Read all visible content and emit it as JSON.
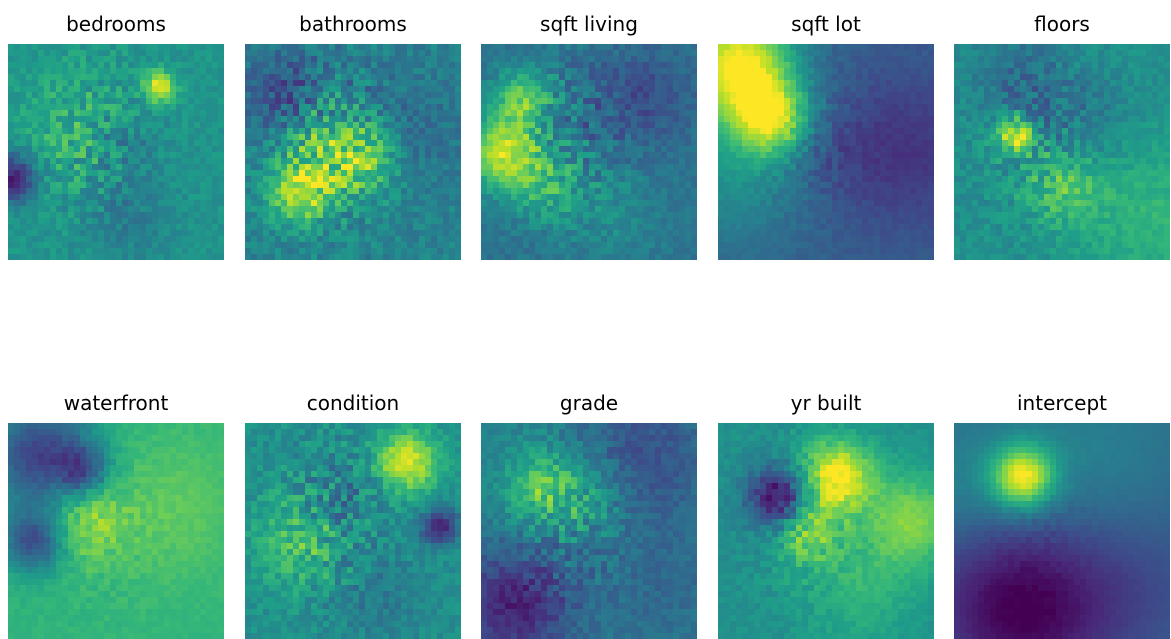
{
  "figure": {
    "colormap": "viridis",
    "colormap_stops": [
      "#440154",
      "#482878",
      "#3e4989",
      "#31688e",
      "#26828e",
      "#1f9e89",
      "#35b779",
      "#6ece58",
      "#b5de2b",
      "#fde725"
    ],
    "background": "#ffffff"
  },
  "chart_data": [
    {
      "type": "heatmap",
      "title": "bedrooms",
      "base": 0.52,
      "noise": 0.18,
      "blobs": [
        [
          0.7,
          0.2,
          0.05,
          0.45
        ],
        [
          0.02,
          0.62,
          0.08,
          -0.45
        ],
        [
          0.3,
          0.4,
          0.2,
          0.12
        ],
        [
          0.55,
          0.45,
          0.12,
          -0.1
        ],
        [
          0.55,
          0.8,
          0.15,
          -0.1
        ]
      ]
    },
    {
      "type": "heatmap",
      "title": "bathrooms",
      "base": 0.45,
      "noise": 0.28,
      "blobs": [
        [
          0.25,
          0.7,
          0.1,
          0.4
        ],
        [
          0.35,
          0.45,
          0.15,
          0.3
        ],
        [
          0.55,
          0.55,
          0.12,
          0.3
        ],
        [
          0.2,
          0.25,
          0.15,
          -0.25
        ],
        [
          0.75,
          0.4,
          0.2,
          -0.1
        ]
      ]
    },
    {
      "type": "heatmap",
      "title": "sqft living",
      "base": 0.38,
      "noise": 0.2,
      "blobs": [
        [
          0.1,
          0.5,
          0.12,
          0.5
        ],
        [
          0.2,
          0.25,
          0.1,
          0.35
        ],
        [
          0.3,
          0.65,
          0.12,
          0.25
        ],
        [
          0.75,
          0.25,
          0.15,
          -0.15
        ],
        [
          0.6,
          0.8,
          0.18,
          0.1
        ]
      ]
    },
    {
      "type": "heatmap",
      "title": "sqft lot",
      "base": 0.3,
      "noise": 0.08,
      "blobs": [
        [
          0.1,
          0.1,
          0.18,
          0.7
        ],
        [
          0.25,
          0.35,
          0.12,
          0.5
        ],
        [
          0.05,
          0.6,
          0.25,
          0.2
        ],
        [
          0.85,
          0.5,
          0.25,
          -0.15
        ],
        [
          0.5,
          0.5,
          0.12,
          -0.05
        ]
      ]
    },
    {
      "type": "heatmap",
      "title": "floors",
      "base": 0.5,
      "noise": 0.18,
      "blobs": [
        [
          0.28,
          0.42,
          0.06,
          0.45
        ],
        [
          0.3,
          0.15,
          0.15,
          -0.15
        ],
        [
          0.6,
          0.35,
          0.15,
          -0.1
        ],
        [
          0.5,
          0.65,
          0.12,
          0.2
        ],
        [
          0.9,
          0.8,
          0.25,
          0.15
        ]
      ]
    },
    {
      "type": "heatmap",
      "title": "waterfront",
      "base": 0.65,
      "noise": 0.08,
      "blobs": [
        [
          0.15,
          0.15,
          0.18,
          -0.45
        ],
        [
          0.12,
          0.55,
          0.1,
          -0.4
        ],
        [
          0.35,
          0.22,
          0.08,
          -0.3
        ],
        [
          0.35,
          0.45,
          0.12,
          0.2
        ],
        [
          0.75,
          0.4,
          0.25,
          0.1
        ]
      ]
    },
    {
      "type": "heatmap",
      "title": "condition",
      "base": 0.5,
      "noise": 0.22,
      "blobs": [
        [
          0.75,
          0.18,
          0.1,
          0.45
        ],
        [
          0.9,
          0.48,
          0.06,
          -0.4
        ],
        [
          0.25,
          0.55,
          0.15,
          0.2
        ],
        [
          0.45,
          0.35,
          0.12,
          -0.1
        ],
        [
          0.6,
          0.8,
          0.15,
          -0.1
        ]
      ]
    },
    {
      "type": "heatmap",
      "title": "grade",
      "base": 0.45,
      "noise": 0.18,
      "blobs": [
        [
          0.15,
          0.85,
          0.2,
          -0.35
        ],
        [
          0.75,
          0.15,
          0.25,
          -0.2
        ],
        [
          0.28,
          0.3,
          0.12,
          0.3
        ],
        [
          0.5,
          0.35,
          0.15,
          0.15
        ],
        [
          0.85,
          0.8,
          0.25,
          -0.1
        ]
      ]
    },
    {
      "type": "heatmap",
      "title": "yr built",
      "base": 0.5,
      "noise": 0.12,
      "blobs": [
        [
          0.28,
          0.35,
          0.1,
          -0.5
        ],
        [
          0.55,
          0.25,
          0.12,
          0.5
        ],
        [
          0.4,
          0.5,
          0.1,
          0.3
        ],
        [
          0.9,
          0.45,
          0.15,
          0.3
        ],
        [
          0.65,
          0.75,
          0.2,
          0.15
        ]
      ]
    },
    {
      "type": "heatmap",
      "title": "intercept",
      "base": 0.35,
      "noise": 0.03,
      "blobs": [
        [
          0.32,
          0.25,
          0.1,
          0.6
        ],
        [
          0.3,
          0.85,
          0.3,
          -0.35
        ],
        [
          0.6,
          0.2,
          0.3,
          0.1
        ],
        [
          0.85,
          0.75,
          0.3,
          -0.1
        ],
        [
          0.05,
          0.3,
          0.2,
          0.1
        ]
      ]
    }
  ]
}
